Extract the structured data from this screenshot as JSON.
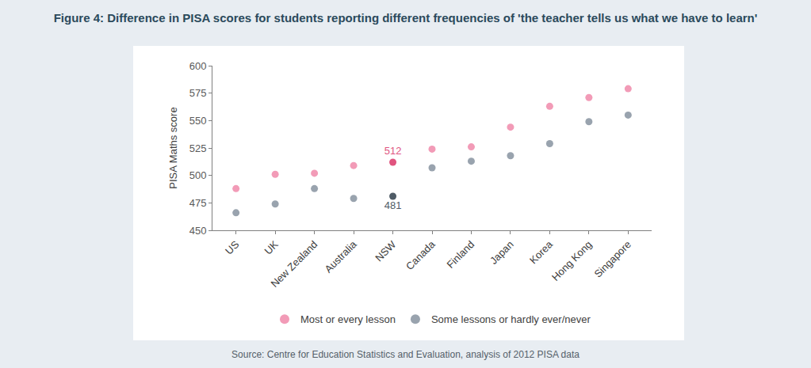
{
  "chart_data": {
    "type": "scatter",
    "title": "Figure 4: Difference in PISA scores for students reporting different frequencies of 'the teacher tells us what we have to learn'",
    "source": "Source: Centre for Education Statistics and Evaluation, analysis of 2012 PISA data",
    "y_label": "PISA Maths score",
    "categories": [
      "US",
      "UK",
      "New Zealand",
      "Australia",
      "NSW",
      "Canada",
      "Finland",
      "Japan",
      "Korea",
      "Hong Kong",
      "Singapore"
    ],
    "series": [
      {
        "name": "Most or every lesson",
        "color": "#f29bb7",
        "colors": [
          "#f29bb7",
          "#f29bb7",
          "#f29bb7",
          "#f29bb7",
          "#e0547f",
          "#f29bb7",
          "#f29bb7",
          "#f29bb7",
          "#f29bb7",
          "#f29bb7",
          "#f29bb7"
        ],
        "values": [
          488,
          501,
          502,
          509,
          512,
          524,
          526,
          544,
          563,
          571,
          579
        ],
        "value_labels": [
          null,
          null,
          null,
          null,
          "512",
          null,
          null,
          null,
          null,
          null,
          null
        ]
      },
      {
        "name": "Some lessons or hardly ever/never",
        "color": "#99a3ae",
        "colors": [
          "#99a3ae",
          "#99a3ae",
          "#99a3ae",
          "#99a3ae",
          "#4f5b66",
          "#99a3ae",
          "#99a3ae",
          "#99a3ae",
          "#99a3ae",
          "#99a3ae",
          "#99a3ae"
        ],
        "values": [
          466,
          474,
          488,
          479,
          481,
          507,
          513,
          518,
          529,
          549,
          555
        ],
        "value_labels": [
          null,
          null,
          null,
          null,
          "481",
          null,
          null,
          null,
          null,
          null,
          null
        ]
      }
    ],
    "ylim": [
      450,
      600
    ],
    "yticks": [
      450,
      475,
      500,
      525,
      550,
      575,
      600
    ],
    "grid": false,
    "legend": "bottom",
    "marker": "circle"
  }
}
